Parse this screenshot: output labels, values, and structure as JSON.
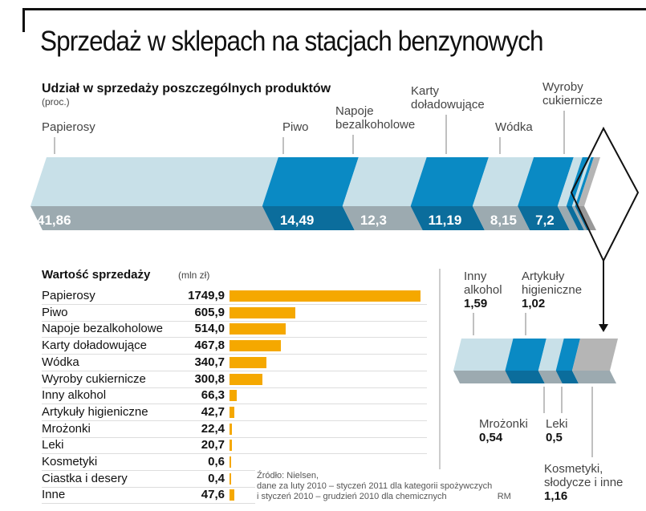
{
  "title": "Sprzedaż w sklepach na stacjach benzynowych",
  "chart_data": [
    {
      "type": "bar",
      "orientation": "horizontal-stacked",
      "title": "Udział w sprzedaży poszczególnych produktów",
      "unit": "(proc.)",
      "categories": [
        "Papierosy",
        "Piwo",
        "Napoje bezalkoholowe",
        "Karty doładowujące",
        "Wódka",
        "Wyroby cukiernicze",
        "Inny alkohol",
        "Artykuły higieniczne",
        "Mrożonki",
        "Leki",
        "Kosmetyki, słodycze i inne"
      ],
      "values": [
        41.86,
        14.49,
        12.3,
        11.19,
        8.15,
        7.2,
        1.59,
        1.02,
        0.54,
        0.5,
        1.16
      ],
      "value_labels": [
        "41,86",
        "14,49",
        "12,3",
        "11,19",
        "8,15",
        "7,2",
        "1,59",
        "1,02",
        "0,54",
        "0,5",
        "1,16"
      ],
      "colors": {
        "light": "#c8e0e8",
        "blue": "#0a8ac4",
        "light_bottom": "#9caab0",
        "blue_bottom": "#0b6d9c",
        "grey": "#b5b5b5"
      }
    },
    {
      "type": "bar",
      "orientation": "horizontal",
      "title": "Wartość sprzedaży",
      "unit": "(mln zł)",
      "categories": [
        "Papierosy",
        "Piwo",
        "Napoje bezalkoholowe",
        "Karty doładowujące",
        "Wódka",
        "Wyroby cukiernicze",
        "Inny alkohol",
        "Artykuły higieniczne",
        "Mrożonki",
        "Leki",
        "Kosmetyki",
        "Ciastka i desery",
        "Inne"
      ],
      "values": [
        1749.9,
        605.9,
        514.0,
        467.8,
        340.7,
        300.8,
        66.3,
        42.7,
        22.4,
        20.7,
        0.6,
        0.4,
        47.6
      ],
      "value_labels": [
        "1749,9",
        "605,9",
        "514,0",
        "467,8",
        "340,7",
        "300,8",
        "66,3",
        "42,7",
        "22,4",
        "20,7",
        "0,6",
        "0,4",
        "47,6"
      ],
      "color": "#f5a800"
    }
  ],
  "top_labels": [
    [
      "Papierosy"
    ],
    [
      "Piwo"
    ],
    [
      "Napoje",
      "bezalkoholowe"
    ],
    [
      "Karty",
      "doładowujące"
    ],
    [
      "Wódka"
    ],
    [
      "Wyroby",
      "cukiernicze"
    ]
  ],
  "detail_labels": {
    "inny": [
      "Inny",
      "alkohol"
    ],
    "art": [
      "Artykuły",
      "higieniczne"
    ],
    "mroz": [
      "Mrożonki"
    ],
    "leki": [
      "Leki"
    ],
    "kos": [
      "Kosmetyki,",
      "słodycze i inne"
    ]
  },
  "source": {
    "line1": "Źródło: Nielsen,",
    "line2": "dane za luty 2010 – styczeń 2011 dla kategorii spożywczych",
    "line3": "i styczeń 2010 – grudzień 2010 dla chemicznych",
    "credit": "RM"
  }
}
